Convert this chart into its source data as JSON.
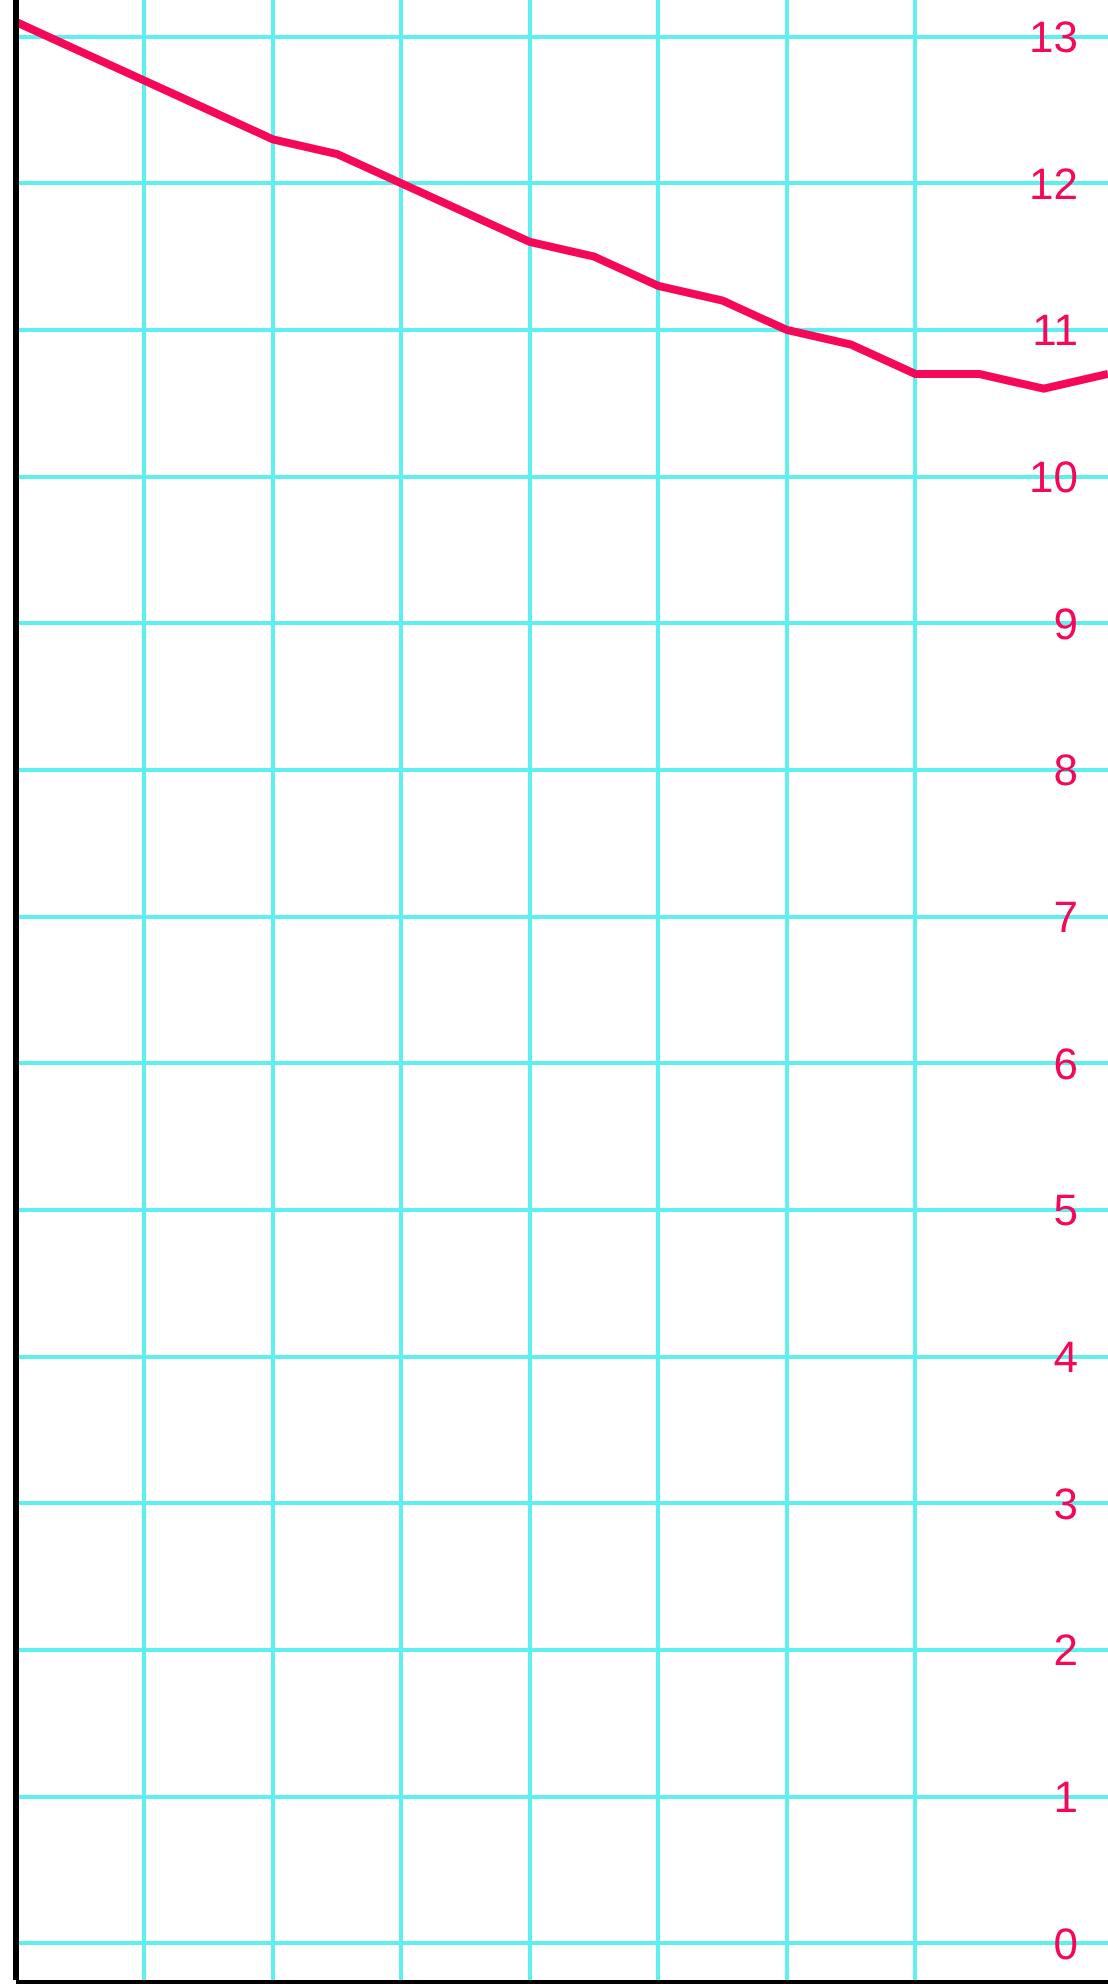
{
  "chart_data": {
    "type": "line",
    "tick_labels": "y",
    "marker": "none",
    "line_style": "solid",
    "grid": true,
    "categories": [
      null,
      null,
      null,
      null,
      null,
      null,
      null,
      null,
      null,
      null,
      null,
      null,
      null,
      null,
      null,
      null,
      null,
      null
    ],
    "series": [
      {
        "color": "#f5085a",
        "values": [
          13.1,
          12.9,
          12.7,
          12.5,
          12.3,
          12.2,
          12.0,
          11.8,
          11.6,
          11.5,
          11.3,
          11.2,
          11.0,
          10.9,
          10.7,
          10.7,
          10.6,
          10.7
        ]
      }
    ],
    "ylim": [
      -0.25,
      13.25
    ],
    "yticks": [
      0,
      1,
      2,
      3,
      4,
      5,
      6,
      7,
      8,
      9,
      10,
      11,
      12,
      13
    ]
  }
}
